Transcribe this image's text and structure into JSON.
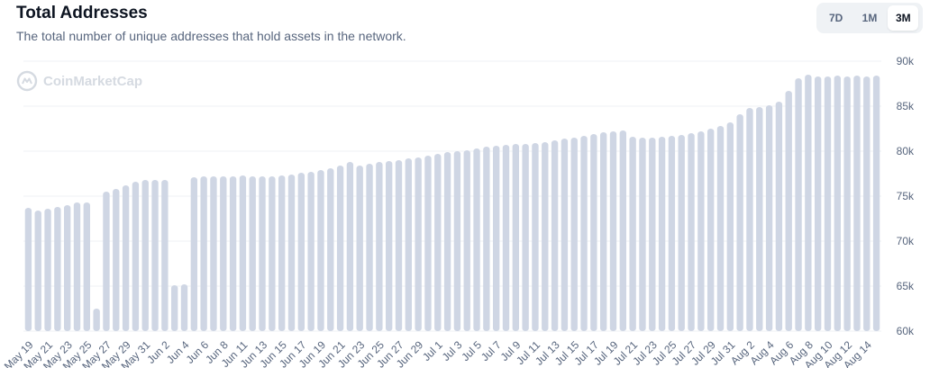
{
  "header": {
    "title": "Total Addresses",
    "subtitle": "The total number of unique addresses that hold assets in the network."
  },
  "range_selector": {
    "options": [
      "7D",
      "1M",
      "3M"
    ],
    "selected": "3M"
  },
  "watermark": {
    "text": "CoinMarketCap",
    "icon": "coinmarketcap-logo-icon"
  },
  "colors": {
    "bar": "#cfd6e4",
    "grid": "#eff2f5",
    "axis_text": "#58667e"
  },
  "chart_data": {
    "type": "bar",
    "title": "Total Addresses",
    "xlabel": "",
    "ylabel": "",
    "ylim": [
      60000,
      90000
    ],
    "y_ticks": [
      "60k",
      "65k",
      "70k",
      "75k",
      "80k",
      "85k",
      "90k"
    ],
    "y_axis_position": "right",
    "grid": true,
    "x_tick_labels": [
      "May 19",
      "May 21",
      "May 23",
      "May 25",
      "May 27",
      "May 29",
      "May 31",
      "Jun 2",
      "Jun 4",
      "Jun 6",
      "Jun 8",
      "Jun 11",
      "Jun 13",
      "Jun 15",
      "Jun 17",
      "Jun 19",
      "Jun 21",
      "Jun 23",
      "Jun 25",
      "Jun 27",
      "Jun 29",
      "Jul 1",
      "Jul 3",
      "Jul 5",
      "Jul 7",
      "Jul 9",
      "Jul 11",
      "Jul 13",
      "Jul 15",
      "Jul 17",
      "Jul 19",
      "Jul 21",
      "Jul 23",
      "Jul 25",
      "Jul 27",
      "Jul 29",
      "Jul 31",
      "Aug 2",
      "Aug 4",
      "Aug 6",
      "Aug 8",
      "Aug 10",
      "Aug 12",
      "Aug 14"
    ],
    "x_tick_every": 2,
    "values": [
      73700,
      73400,
      73600,
      73800,
      74000,
      74300,
      74300,
      62500,
      75500,
      75800,
      76200,
      76600,
      76800,
      76800,
      76800,
      65100,
      65200,
      77100,
      77200,
      77200,
      77200,
      77200,
      77300,
      77200,
      77200,
      77200,
      77300,
      77400,
      77600,
      77700,
      77900,
      78100,
      78400,
      78800,
      78400,
      78600,
      78800,
      78900,
      79000,
      79200,
      79300,
      79500,
      79700,
      79900,
      80000,
      80100,
      80300,
      80500,
      80600,
      80700,
      80800,
      80800,
      80900,
      81000,
      81200,
      81400,
      81500,
      81700,
      81900,
      82100,
      82200,
      82300,
      81600,
      81500,
      81500,
      81600,
      81700,
      81800,
      82000,
      82200,
      82500,
      82800,
      83200,
      84100,
      84800,
      84900,
      85100,
      85500,
      86700,
      88100,
      88500,
      88300,
      88300,
      88400,
      88300,
      88400,
      88300,
      88400
    ]
  }
}
